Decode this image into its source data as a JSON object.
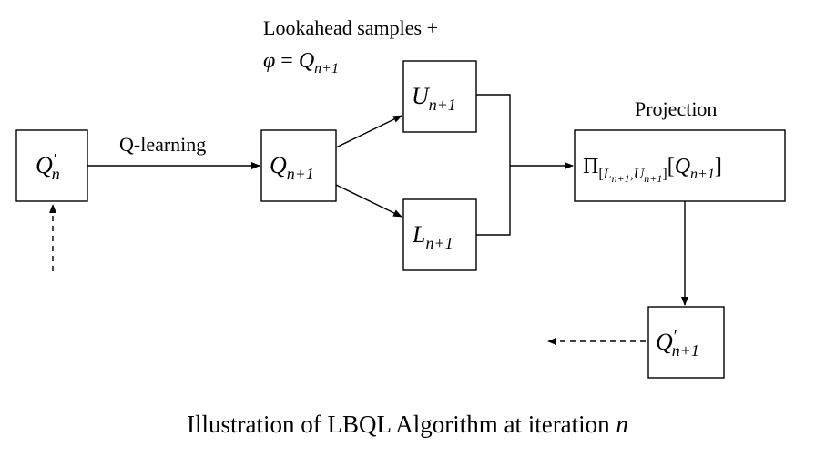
{
  "diagram": {
    "nodes": {
      "q_n_prime": {
        "symbol": "Q",
        "prime": "′",
        "sub": "n"
      },
      "q_next": {
        "symbol": "Q",
        "sub": "n+1"
      },
      "u_next": {
        "symbol": "U",
        "sub": "n+1"
      },
      "l_next": {
        "symbol": "L",
        "sub": "n+1"
      },
      "projection": {
        "pi": "Π",
        "sub_open": "[",
        "sub_l": "L",
        "sub_l_index": "n+1",
        "sub_sep": ",",
        "sub_u": "U",
        "sub_u_index": "n+1",
        "sub_close": "]",
        "arg_open": "[",
        "arg_q": "Q",
        "arg_index": "n+1",
        "arg_close": "]"
      },
      "q_next_prime": {
        "symbol": "Q",
        "prime": "′",
        "sub": "n+1"
      }
    },
    "labels": {
      "q_learning": "Q-learning",
      "lookahead_line1": "Lookahead samples +",
      "lookahead_phi": "φ",
      "lookahead_eq": " = ",
      "lookahead_q": "Q",
      "lookahead_sub": "n+1",
      "projection": "Projection"
    },
    "caption": {
      "text": "Illustration of LBQL Algorithm at iteration ",
      "var": "n"
    }
  }
}
